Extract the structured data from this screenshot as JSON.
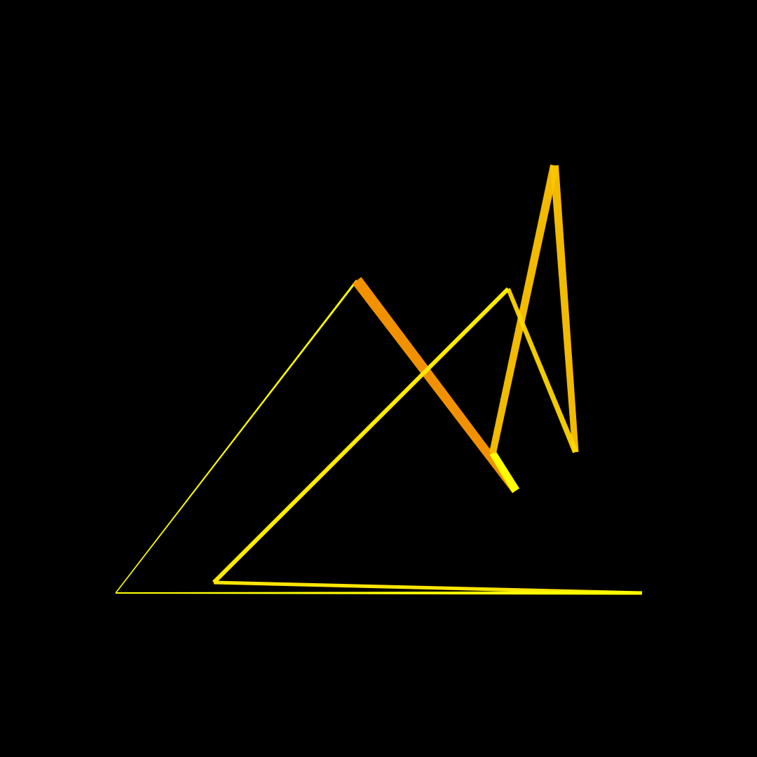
{
  "colors": {
    "background": "#000000",
    "yellow": "#ffff00",
    "gold": "#ffd700",
    "amber": "#ffc400",
    "orange": "#ff9900"
  },
  "artwork": {
    "segments": [
      {
        "name": "segment-thin-rise",
        "color": "#ffff00",
        "opacity": 1.0,
        "weight": "thin"
      },
      {
        "name": "segment-long-descent",
        "color": "#ff9900",
        "opacity": 0.95,
        "weight": "heavy"
      },
      {
        "name": "segment-short-tail",
        "color": "#ffff00",
        "opacity": 1.0,
        "weight": "medium"
      },
      {
        "name": "segment-steep-rise",
        "color": "#ffc400",
        "opacity": 0.95,
        "weight": "medium"
      },
      {
        "name": "segment-steep-fall",
        "color": "#ffc400",
        "opacity": 0.95,
        "weight": "medium"
      },
      {
        "name": "segment-fold-back",
        "color": "#ffd700",
        "opacity": 0.95,
        "weight": "light"
      },
      {
        "name": "segment-diagonal",
        "color": "#ffea00",
        "opacity": 1.0,
        "weight": "light"
      },
      {
        "name": "segment-upper-base",
        "color": "#ffe600",
        "opacity": 1.0,
        "weight": "light"
      },
      {
        "name": "segment-lower-base",
        "color": "#ffff00",
        "opacity": 1.0,
        "weight": "light"
      }
    ]
  }
}
